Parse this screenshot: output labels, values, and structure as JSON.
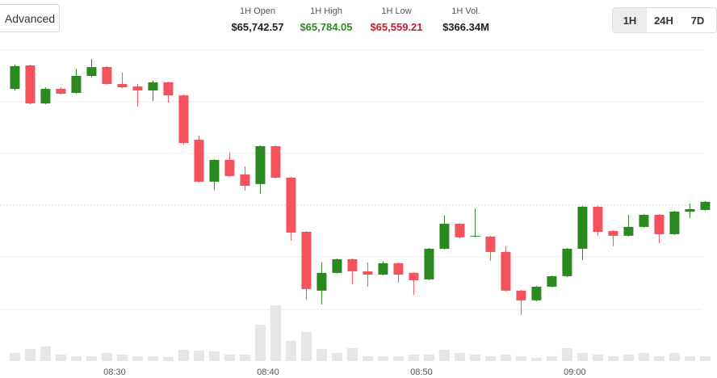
{
  "header": {
    "button": "Advanced",
    "stats": [
      {
        "label": "1H Open",
        "value": "$65,742.57"
      },
      {
        "label": "1H High",
        "value": "$65,784.05"
      },
      {
        "label": "1H Low",
        "value": "$65,559.21"
      },
      {
        "label": "1H Vol.",
        "value": "$366.34M"
      }
    ],
    "tabs": [
      "1H",
      "24H",
      "7D"
    ]
  },
  "chart_data": {
    "type": "candlestick",
    "x": [
      23.5,
      24.5,
      25.5,
      26.5,
      27.5,
      28.5,
      29.5,
      30.5,
      31.5,
      32.5,
      33.5,
      34.5,
      35.5,
      36.5,
      37.5,
      38.5,
      39.5,
      40.5,
      41.5,
      42.5,
      43.5,
      44.5,
      45.5,
      46.5,
      47.5,
      48.5,
      49.5,
      50.5,
      51.5,
      52.5,
      53.5,
      54.5,
      55.5,
      56.5,
      57.5,
      58.5,
      59.5,
      60.5,
      61.5,
      62.5,
      63.5,
      64.5,
      65.5,
      66.5,
      67.5,
      68.5
    ],
    "open": [
      65757.8,
      65778.4,
      65745.0,
      65757.8,
      65754.3,
      65769.2,
      65777.0,
      65762.1,
      65759.9,
      65756.4,
      65763.5,
      65752.1,
      65713.1,
      65676.3,
      65695.4,
      65682.7,
      65674.2,
      65707.5,
      65679.8,
      65632.3,
      65580.6,
      65596.2,
      65608.2,
      65597.6,
      65594.7,
      65604.7,
      65596.2,
      65590.5,
      65617.4,
      65639.4,
      65628.1,
      65628.1,
      65614.6,
      65580.6,
      65572.1,
      65584.1,
      65593.3,
      65617.4,
      65654.3,
      65633.0,
      65628.8,
      65636.6,
      65647.2,
      65630.2,
      65650.0,
      65651.5
    ],
    "high": [
      65779.1,
      65779.1,
      65759.2,
      65759.2,
      65775.5,
      65784.0,
      65777.7,
      65772.0,
      65762.1,
      65764.9,
      65764.2,
      65752.9,
      65716.7,
      65696.1,
      65701.8,
      65689.8,
      65708.2,
      65708.2,
      65680.5,
      65633.0,
      65605.4,
      65608.9,
      65608.9,
      65605.4,
      65606.1,
      65605.4,
      65596.9,
      65618.1,
      65646.5,
      65640.1,
      65652.9,
      65628.8,
      65619.6,
      65581.3,
      65584.8,
      65594.0,
      65618.1,
      65655.0,
      65655.0,
      65633.7,
      65647.2,
      65647.9,
      65647.9,
      65650.8,
      65657.1,
      65659.3
    ],
    "low": [
      65756.4,
      65744.3,
      65744.3,
      65752.9,
      65753.6,
      65767.7,
      65761.4,
      65758.5,
      65742.2,
      65747.2,
      65745.8,
      65708.9,
      65675.6,
      65669.2,
      65680.5,
      65668.5,
      65665.6,
      65679.1,
      65624.5,
      65572.8,
      65568.5,
      65595.5,
      65586.2,
      65584.1,
      65594.0,
      65587.7,
      65577.0,
      65589.8,
      65616.7,
      65626.6,
      65627.4,
      65606.8,
      65579.9,
      65559.3,
      65571.3,
      65583.4,
      65592.6,
      65607.5,
      65628.8,
      65619.6,
      65628.1,
      65635.9,
      65622.4,
      65629.5,
      65644.4,
      65650.8
    ],
    "close": [
      65777.7,
      65745.0,
      65757.8,
      65753.6,
      65769.2,
      65777.0,
      65762.1,
      65759.2,
      65756.4,
      65763.5,
      65752.1,
      65710.3,
      65676.3,
      65695.4,
      65681.2,
      65672.7,
      65707.5,
      65679.8,
      65631.6,
      65582.0,
      65596.2,
      65608.2,
      65597.6,
      65594.7,
      65604.7,
      65594.7,
      65589.8,
      65617.4,
      65639.4,
      65627.4,
      65628.8,
      65614.6,
      65580.6,
      65572.1,
      65584.1,
      65593.3,
      65617.4,
      65654.3,
      65632.3,
      65628.8,
      65636.6,
      65647.2,
      65630.2,
      65650.0,
      65652.2,
      65658.6
    ],
    "volume": [
      10,
      15,
      18,
      8,
      6,
      6,
      10,
      8,
      6,
      6,
      5,
      14,
      13,
      12,
      8,
      8,
      45,
      69,
      25,
      36,
      15,
      10,
      16,
      6,
      6,
      6,
      8,
      8,
      14,
      10,
      8,
      6,
      8,
      6,
      4,
      6,
      16,
      10,
      8,
      6,
      8,
      10,
      6,
      10,
      6,
      6
    ],
    "xlim": [
      22.53,
      68.32
    ],
    "xticks": [
      {
        "value": 30,
        "label": "08:30"
      },
      {
        "value": 40,
        "label": "08:40"
      },
      {
        "value": 50,
        "label": "08:50"
      },
      {
        "value": 60,
        "label": "09:00"
      }
    ],
    "ylim": [
      65550,
      65795
    ],
    "up_color": "#2a8a1f",
    "down_color": "#f4525c",
    "volume_color": "#e6e6e6"
  }
}
